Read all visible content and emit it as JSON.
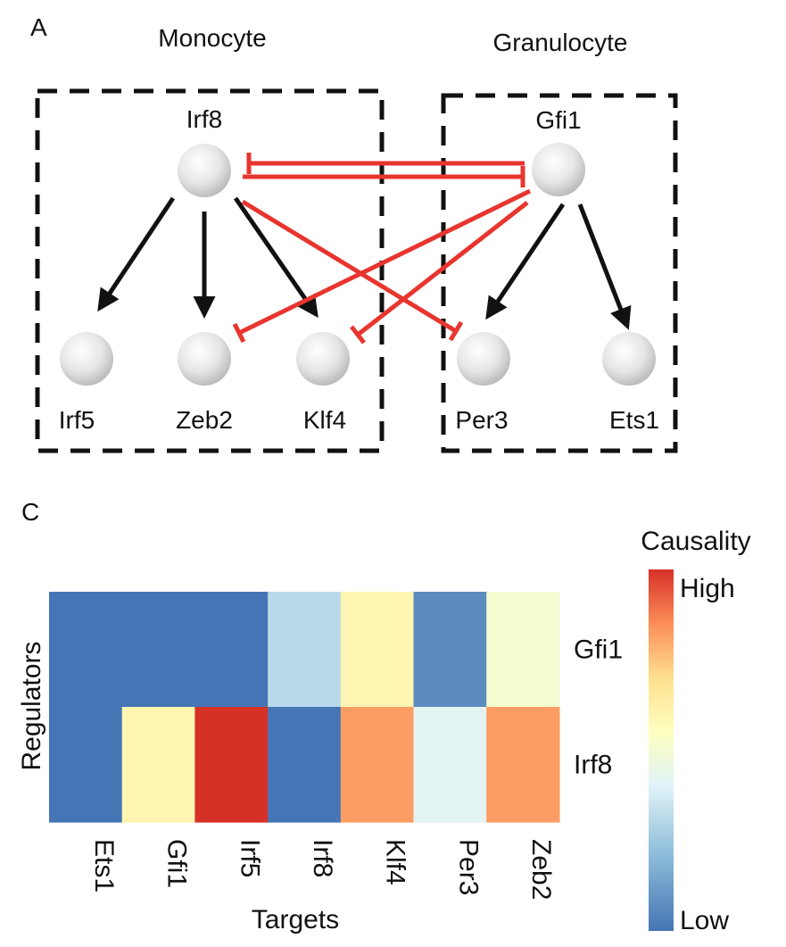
{
  "panel_a": {
    "label": "A",
    "groups": {
      "monocyte": "Monocyte",
      "granulocyte": "Granulocyte"
    },
    "nodes": {
      "irf8": "Irf8",
      "gfi1": "Gfi1",
      "irf5": "Irf5",
      "zeb2": "Zeb2",
      "klf4": "Klf4",
      "per3": "Per3",
      "ets1": "Ets1"
    },
    "edges": [
      {
        "from": "Irf8",
        "to": "Irf5",
        "type": "activation"
      },
      {
        "from": "Irf8",
        "to": "Zeb2",
        "type": "activation"
      },
      {
        "from": "Irf8",
        "to": "Klf4",
        "type": "activation"
      },
      {
        "from": "Irf8",
        "to": "Per3",
        "type": "inhibition"
      },
      {
        "from": "Irf8",
        "to": "Gfi1",
        "type": "inhibition"
      },
      {
        "from": "Gfi1",
        "to": "Irf8",
        "type": "inhibition"
      },
      {
        "from": "Gfi1",
        "to": "Zeb2",
        "type": "inhibition"
      },
      {
        "from": "Gfi1",
        "to": "Klf4",
        "type": "inhibition"
      },
      {
        "from": "Gfi1",
        "to": "Per3",
        "type": "activation"
      },
      {
        "from": "Gfi1",
        "to": "Ets1",
        "type": "activation"
      }
    ],
    "colors": {
      "activation": "#111111",
      "inhibition": "#e8352f"
    }
  },
  "panel_c": {
    "label": "C",
    "chart_data": {
      "type": "heatmap",
      "xlabel": "Targets",
      "ylabel": "Regulators",
      "columns": [
        "Ets1",
        "Gfi1",
        "Irf5",
        "Irf8",
        "Klf4",
        "Per3",
        "Zeb2"
      ],
      "rows": [
        "Gfi1",
        "Irf8"
      ],
      "values": [
        [
          0.0,
          0.0,
          0.0,
          0.25,
          0.55,
          0.05,
          0.45
        ],
        [
          0.0,
          0.55,
          1.0,
          0.0,
          0.8,
          0.35,
          0.8
        ]
      ],
      "colorbar": {
        "title": "Causality",
        "high_label": "High",
        "low_label": "Low"
      },
      "colormap": [
        "#4575b4",
        "#91bfdb",
        "#e0f3f8",
        "#fefebf",
        "#fee090",
        "#fc8d59",
        "#d73027"
      ]
    }
  }
}
